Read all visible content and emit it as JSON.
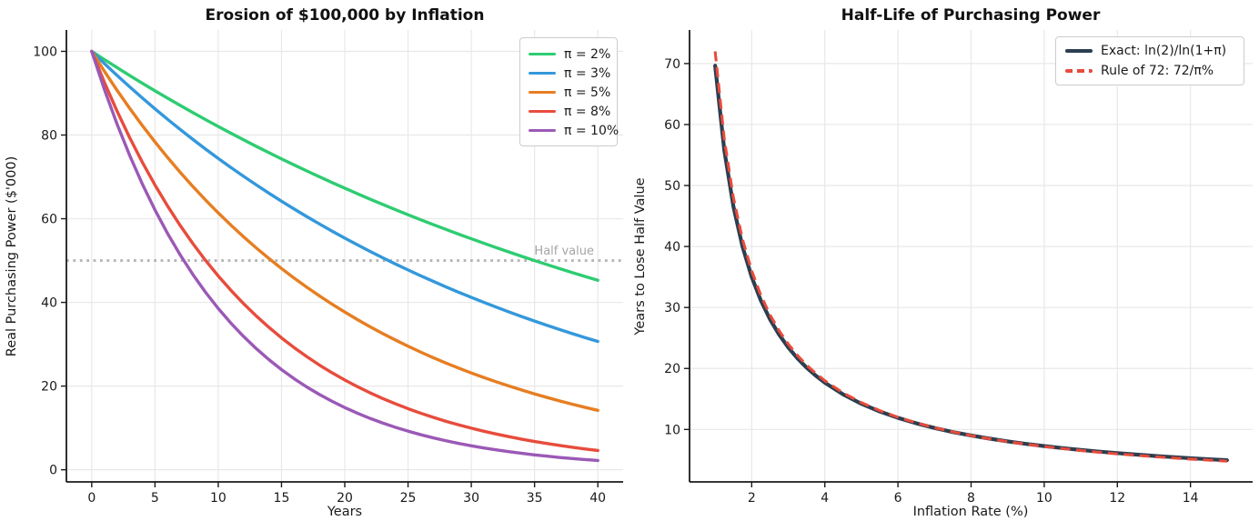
{
  "figure": {
    "background": "#ffffff"
  },
  "chart_data": [
    {
      "type": "line",
      "title": "Erosion of $100,000 by Inflation",
      "xlabel": "Years",
      "ylabel": "Real Purchasing Power ($'000)",
      "xlim": [
        -2,
        42
      ],
      "ylim": [
        -2.9,
        105.1
      ],
      "xticks": [
        0,
        5,
        10,
        15,
        20,
        25,
        30,
        35,
        40
      ],
      "yticks": [
        0,
        20,
        40,
        60,
        80,
        100
      ],
      "grid": true,
      "legend_position": "upper right",
      "x": [
        0,
        1,
        2,
        3,
        4,
        5,
        6,
        7,
        8,
        9,
        10,
        11,
        12,
        13,
        14,
        15,
        16,
        17,
        18,
        19,
        20,
        21,
        22,
        23,
        24,
        25,
        26,
        27,
        28,
        29,
        30,
        31,
        32,
        33,
        34,
        35,
        36,
        37,
        38,
        39,
        40
      ],
      "series": [
        {
          "name": "π = 2%",
          "color": "#2ecc71",
          "line_style": "solid",
          "values": [
            100,
            98.04,
            96.12,
            94.23,
            92.38,
            90.57,
            88.8,
            87.06,
            85.35,
            83.68,
            82.03,
            80.43,
            78.85,
            77.3,
            75.79,
            74.3,
            72.84,
            71.42,
            70.02,
            68.64,
            67.3,
            65.98,
            64.68,
            63.42,
            62.17,
            60.95,
            59.76,
            58.59,
            57.44,
            56.31,
            55.21,
            54.13,
            53.06,
            52.02,
            51.0,
            50.0,
            49.02,
            48.06,
            47.12,
            46.19,
            45.29
          ]
        },
        {
          "name": "π = 3%",
          "color": "#3498db",
          "line_style": "solid",
          "values": [
            100,
            97.09,
            94.26,
            91.51,
            88.85,
            86.26,
            83.75,
            81.31,
            78.94,
            76.64,
            74.41,
            72.24,
            70.14,
            68.1,
            66.11,
            64.19,
            62.32,
            60.5,
            58.74,
            57.03,
            55.37,
            53.76,
            52.19,
            50.67,
            49.19,
            47.76,
            46.37,
            45.02,
            43.71,
            42.43,
            41.2,
            40.0,
            38.83,
            37.7,
            36.6,
            35.54,
            34.5,
            33.5,
            32.52,
            31.58,
            30.66
          ]
        },
        {
          "name": "π = 5%",
          "color": "#e67e22",
          "line_style": "solid",
          "values": [
            100,
            95.24,
            90.7,
            86.38,
            82.27,
            78.35,
            74.62,
            71.07,
            67.68,
            64.46,
            61.39,
            58.47,
            55.68,
            53.03,
            50.51,
            48.1,
            45.81,
            43.63,
            41.55,
            39.57,
            37.69,
            35.89,
            34.18,
            32.56,
            31.01,
            29.53,
            28.12,
            26.78,
            25.51,
            24.3,
            23.14,
            22.04,
            20.99,
            19.99,
            19.04,
            18.13,
            17.27,
            16.44,
            15.66,
            14.91,
            14.2
          ]
        },
        {
          "name": "π = 8%",
          "color": "#e74c3c",
          "line_style": "solid",
          "values": [
            100,
            92.59,
            85.73,
            79.38,
            73.5,
            68.06,
            63.02,
            58.35,
            54.03,
            50.02,
            46.32,
            42.89,
            39.71,
            36.77,
            34.05,
            31.52,
            29.19,
            27.03,
            25.02,
            23.17,
            21.45,
            19.87,
            18.39,
            17.03,
            15.77,
            14.6,
            13.52,
            12.52,
            11.59,
            10.73,
            9.94,
            9.2,
            8.52,
            7.89,
            7.3,
            6.76,
            6.26,
            5.8,
            5.37,
            4.97,
            4.6
          ]
        },
        {
          "name": "π = 10%",
          "color": "#9b59b6",
          "line_style": "solid",
          "values": [
            100,
            90.91,
            82.64,
            75.13,
            68.3,
            62.09,
            56.45,
            51.32,
            46.65,
            42.41,
            38.55,
            35.05,
            31.86,
            28.97,
            26.33,
            23.94,
            21.76,
            19.78,
            17.99,
            16.35,
            14.86,
            13.51,
            12.28,
            11.17,
            10.15,
            9.23,
            8.39,
            7.63,
            6.93,
            6.3,
            5.73,
            5.21,
            4.74,
            4.31,
            3.92,
            3.56,
            3.24,
            2.94,
            2.68,
            2.43,
            2.21
          ]
        }
      ],
      "reference_line": {
        "y": 50,
        "label": "Half value",
        "color": "#b5b5b5",
        "style": "dotted"
      }
    },
    {
      "type": "line",
      "title": "Half-Life of Purchasing Power",
      "xlabel": "Inflation Rate (%)",
      "ylabel": "Years to Lose Half Value",
      "xlim": [
        0.3,
        15.7
      ],
      "ylim": [
        1.4,
        75.5
      ],
      "xticks": [
        2,
        4,
        6,
        8,
        10,
        12,
        14
      ],
      "yticks": [
        10,
        20,
        30,
        40,
        50,
        60,
        70
      ],
      "grid": true,
      "legend_position": "upper right",
      "x": [
        1,
        1.25,
        1.5,
        1.75,
        2,
        2.25,
        2.5,
        2.75,
        3,
        3.25,
        3.5,
        3.75,
        4,
        4.5,
        5,
        5.5,
        6,
        6.5,
        7,
        7.5,
        8,
        8.5,
        9,
        9.5,
        10,
        10.5,
        11,
        11.5,
        12,
        12.5,
        13,
        13.5,
        14,
        14.5,
        15
      ],
      "series": [
        {
          "name": "Exact: ln(2)/ln(1+π)",
          "color": "#2c3e50",
          "line_style": "solid",
          "values": [
            69.66,
            55.79,
            46.56,
            39.95,
            35.0,
            31.15,
            28.07,
            25.55,
            23.45,
            21.67,
            20.15,
            18.83,
            17.67,
            15.75,
            14.21,
            12.95,
            11.9,
            11.01,
            10.24,
            9.58,
            9.01,
            8.5,
            8.04,
            7.64,
            7.27,
            6.94,
            6.64,
            6.37,
            6.12,
            5.89,
            5.67,
            5.47,
            5.29,
            5.12,
            4.96
          ]
        },
        {
          "name": "Rule of 72: 72/π%",
          "color": "#e74c3c",
          "line_style": "dashed",
          "values": [
            72.0,
            57.6,
            48.0,
            41.14,
            36.0,
            32.0,
            28.8,
            26.18,
            24.0,
            22.15,
            20.57,
            19.2,
            18.0,
            16.0,
            14.4,
            13.09,
            12.0,
            11.08,
            10.29,
            9.6,
            9.0,
            8.47,
            8.0,
            7.58,
            7.2,
            6.86,
            6.55,
            6.26,
            6.0,
            5.76,
            5.54,
            5.33,
            5.14,
            4.97,
            4.8
          ]
        }
      ]
    }
  ]
}
